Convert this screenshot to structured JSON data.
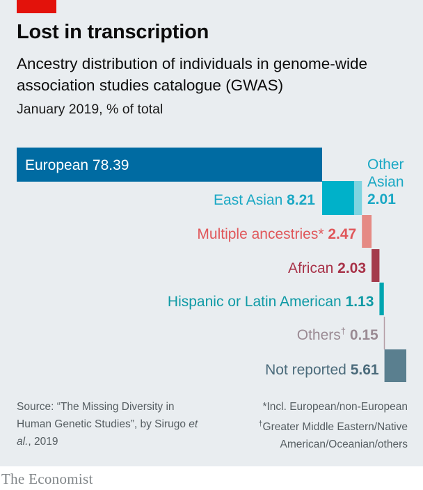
{
  "header": {
    "title": "Lost in transcription",
    "subtitle": "Ancestry distribution of individuals in genome-wide association studies catalogue (GWAS)",
    "date_note": "January 2019, % of total"
  },
  "chart_data": {
    "type": "bar",
    "layout": "waterfall",
    "categories": [
      "European",
      "East Asian",
      "Other Asian",
      "Multiple ancestries*",
      "African",
      "Hispanic or Latin American",
      "Others†",
      "Not reported"
    ],
    "values": [
      78.39,
      8.21,
      2.01,
      2.47,
      2.03,
      1.13,
      0.15,
      5.61
    ],
    "value_labels": [
      "78.39",
      "8.21",
      "2.01",
      "2.47",
      "2.03",
      "1.13",
      "0.15",
      "5.61"
    ],
    "colors": [
      "#006ba2",
      "#00b1c9",
      "#7fd4e0",
      "#e58a84",
      "#a43b4c",
      "#00a5b0",
      "#b59ea6",
      "#5a7f8f"
    ],
    "label_colors": [
      "#ffffff",
      "#1aa8c4",
      "#1aa8c4",
      "#e0575a",
      "#a83248",
      "#0f9aa5",
      "#9a8a93",
      "#4b6b7b"
    ],
    "title": "Lost in transcription",
    "xlabel": "",
    "ylabel": "",
    "xlim": [
      0,
      100
    ],
    "grid": false,
    "legend": "none"
  },
  "footer": {
    "source": "Source: “The Missing Diversity in Human Genetic Studies”, by Sirugo et al., 2019",
    "note_star": "*Incl. European/non-European",
    "note_dagger": "Greater Middle Eastern/Native American/Oceanian/others",
    "dagger": "†"
  },
  "brand": "The Economist"
}
